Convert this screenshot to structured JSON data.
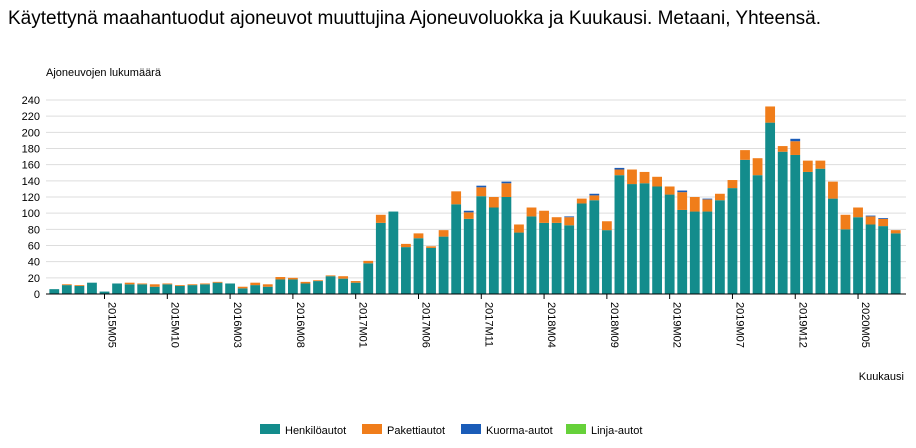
{
  "chart_data": {
    "type": "bar",
    "stacked": true,
    "title": "Käytettynä maahantuodut ajoneuvot muuttujina Ajoneuvoluokka ja Kuukausi. Metaani, Yhteensä.",
    "ylabel": "Ajoneuvojen lukumäärä",
    "xlabel": "Kuukausi",
    "ylim": [
      0,
      240
    ],
    "yticks": [
      0,
      20,
      40,
      60,
      80,
      100,
      120,
      140,
      160,
      180,
      200,
      220,
      240
    ],
    "grid": true,
    "legend_position": "bottom",
    "colors": {
      "Henkilöautot": "#138c8c",
      "Pakettiautot": "#f07d1a",
      "Kuorma-autot": "#1a5cb8",
      "Linja-autot": "#66d13a"
    },
    "categories": [
      "2015M01",
      "2015M02",
      "2015M03",
      "2015M04",
      "2015M05",
      "2015M06",
      "2015M07",
      "2015M08",
      "2015M09",
      "2015M10",
      "2015M11",
      "2015M12",
      "2016M01",
      "2016M02",
      "2016M03",
      "2016M04",
      "2016M05",
      "2016M06",
      "2016M07",
      "2016M08",
      "2016M09",
      "2016M10",
      "2016M11",
      "2016M12",
      "2017M01",
      "2017M02",
      "2017M03",
      "2017M04",
      "2017M05",
      "2017M06",
      "2017M07",
      "2017M08",
      "2017M09",
      "2017M10",
      "2017M11",
      "2017M12",
      "2018M01",
      "2018M02",
      "2018M03",
      "2018M04",
      "2018M05",
      "2018M06",
      "2018M07",
      "2018M08",
      "2018M09",
      "2018M10",
      "2018M11",
      "2018M12",
      "2019M01",
      "2019M02",
      "2019M03",
      "2019M04",
      "2019M05",
      "2019M06",
      "2019M07",
      "2019M08",
      "2019M09",
      "2019M10",
      "2019M11",
      "2019M12",
      "2020M01",
      "2020M02",
      "2020M03",
      "2020M04",
      "2020M05",
      "2020M06",
      "2020M07",
      "2020M08"
    ],
    "tick_labels": [
      "2015M05",
      "2015M10",
      "2016M03",
      "2016M08",
      "2017M01",
      "2017M06",
      "2017M11",
      "2018M04",
      "2018M09",
      "2019M02",
      "2019M07",
      "2019M12",
      "2020M05"
    ],
    "series": [
      {
        "name": "Henkilöautot",
        "values": [
          6,
          11,
          10,
          14,
          3,
          13,
          12,
          12,
          9,
          12,
          10,
          11,
          12,
          14,
          13,
          7,
          11,
          9,
          18,
          18,
          13,
          16,
          22,
          19,
          14,
          38,
          88,
          102,
          58,
          69,
          57,
          71,
          111,
          93,
          121,
          107,
          120,
          76,
          96,
          88,
          88,
          85,
          112,
          116,
          79,
          147,
          136,
          137,
          133,
          123,
          104,
          102,
          102,
          116,
          131,
          166,
          147,
          212,
          176,
          172,
          151,
          155,
          118,
          80,
          95,
          86,
          84,
          75
        ],
        "x_ticks_note": ""
      },
      {
        "name": "Pakettiautot",
        "values": [
          0,
          1,
          1,
          0,
          0,
          0,
          2,
          1,
          3,
          1,
          1,
          1,
          1,
          1,
          0,
          2,
          3,
          3,
          3,
          2,
          2,
          1,
          1,
          3,
          2,
          3,
          10,
          0,
          4,
          6,
          2,
          8,
          16,
          8,
          11,
          13,
          17,
          10,
          11,
          15,
          7,
          10,
          6,
          6,
          11,
          7,
          18,
          14,
          12,
          10,
          22,
          18,
          15,
          8,
          10,
          12,
          21,
          20,
          7,
          17,
          14,
          10,
          21,
          18,
          12,
          10,
          9,
          4
        ],
        "x_ticks_note": ""
      },
      {
        "name": "Kuorma-autot",
        "values": [
          0,
          0,
          0,
          0,
          0,
          0,
          0,
          0,
          0,
          0,
          0,
          0,
          0,
          0,
          0,
          0,
          0,
          0,
          0,
          0,
          0,
          0,
          0,
          0,
          0,
          0,
          0,
          0,
          0,
          0,
          0,
          0,
          0,
          2,
          2,
          0,
          2,
          0,
          0,
          0,
          0,
          1,
          0,
          2,
          0,
          2,
          0,
          0,
          0,
          0,
          2,
          0,
          1,
          0,
          0,
          0,
          0,
          0,
          0,
          3,
          0,
          0,
          0,
          0,
          0,
          1,
          1,
          0
        ],
        "x_ticks_note": ""
      },
      {
        "name": "Linja-autot",
        "values": [
          0,
          0,
          0,
          0,
          0,
          0,
          0,
          0,
          0,
          0,
          0,
          0,
          0,
          0,
          0,
          0,
          0,
          0,
          0,
          0,
          0,
          0,
          0,
          0,
          0,
          0,
          0,
          0,
          0,
          0,
          0,
          0,
          0,
          0,
          0,
          0,
          0,
          0,
          0,
          0,
          0,
          0,
          0,
          0,
          0,
          0,
          0,
          0,
          0,
          0,
          0,
          0,
          0,
          0,
          0,
          0,
          0,
          0,
          0,
          0,
          0,
          0,
          0,
          0,
          0,
          0,
          0,
          0
        ],
        "x_ticks_note": ""
      }
    ]
  }
}
